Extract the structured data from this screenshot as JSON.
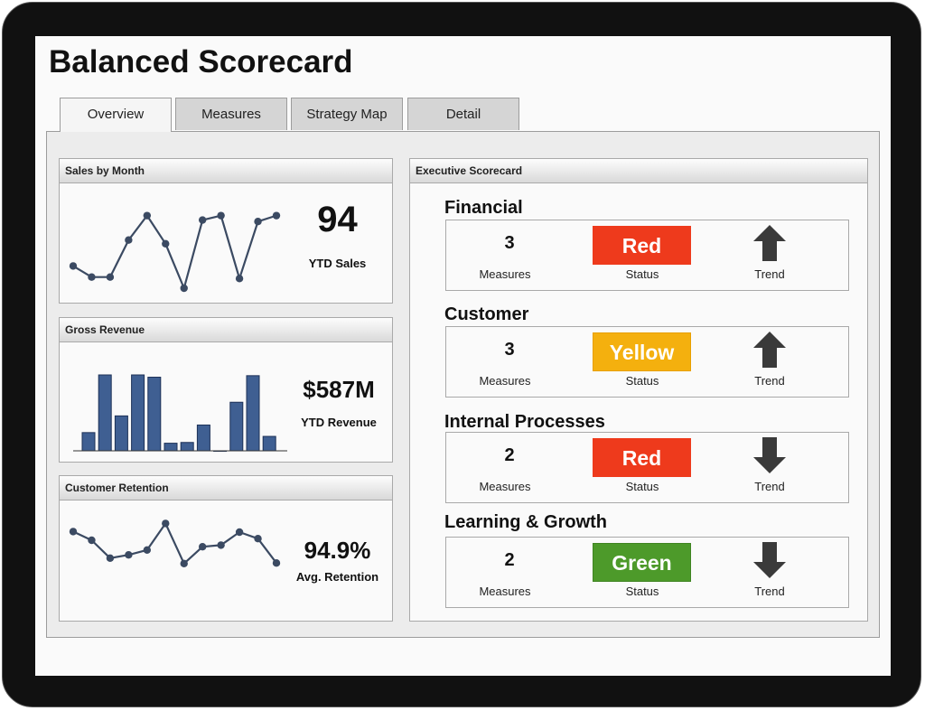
{
  "page_title": "Balanced Scorecard",
  "tabs": [
    {
      "label": "Overview",
      "active": true
    },
    {
      "label": "Measures",
      "active": false
    },
    {
      "label": "Strategy Map",
      "active": false
    },
    {
      "label": "Detail",
      "active": false
    }
  ],
  "sales_panel": {
    "header": "Sales by Month",
    "value": "94",
    "caption": "YTD Sales",
    "sparkline": [
      3,
      1.5,
      1.5,
      6.5,
      9.8,
      6,
      0,
      9.2,
      9.8,
      1.3,
      9,
      9.8
    ]
  },
  "revenue_panel": {
    "header": "Gross Revenue",
    "value": "$587M",
    "caption": "YTD Revenue",
    "bars": [
      2.4,
      10,
      4.6,
      10,
      9.7,
      1,
      1.1,
      3.4,
      0,
      6.4,
      9.9,
      1.9
    ]
  },
  "retention_panel": {
    "header": "Customer Retention",
    "value": "94.9%",
    "caption": "Avg. Retention",
    "sparkline": [
      8.1,
      6.5,
      3.2,
      3.8,
      4.7,
      9.6,
      2.2,
      5.3,
      5.6,
      8,
      6.8,
      2.3
    ]
  },
  "scorecard": {
    "header": "Executive Scorecard",
    "measures_label": "Measures",
    "status_label": "Status",
    "trend_label": "Trend",
    "perspectives": [
      {
        "name": "Financial",
        "measures": "3",
        "status": "Red",
        "status_color": "#ee3a1c",
        "trend": "up"
      },
      {
        "name": "Customer",
        "measures": "3",
        "status": "Yellow",
        "status_color": "#f4b00e",
        "trend": "up"
      },
      {
        "name": "Internal Processes",
        "measures": "2",
        "status": "Red",
        "status_color": "#ee3a1c",
        "trend": "down"
      },
      {
        "name": "Learning & Growth",
        "measures": "2",
        "status": "Green",
        "status_color": "#4d9a2a",
        "trend": "down"
      }
    ]
  },
  "colors": {
    "line": "#3b4a62",
    "bar": "#3f5f92",
    "bar_edge": "#1d3157"
  }
}
